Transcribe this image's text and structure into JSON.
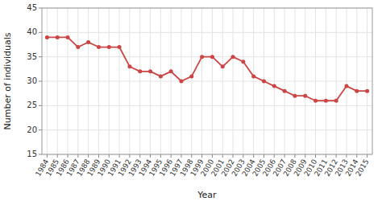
{
  "chart_data": {
    "type": "line",
    "x": [
      1984,
      1985,
      1986,
      1987,
      1988,
      1989,
      1990,
      1991,
      1992,
      1993,
      1994,
      1995,
      1996,
      1997,
      1998,
      1999,
      2000,
      2001,
      2002,
      2003,
      2004,
      2005,
      2006,
      2007,
      2008,
      2009,
      2010,
      2011,
      2012,
      2013,
      2014,
      2015
    ],
    "values": [
      39,
      39,
      39,
      37,
      38,
      37,
      37,
      37,
      33,
      32,
      32,
      31,
      32,
      30,
      31,
      35,
      35,
      33,
      35,
      34,
      31,
      30,
      29,
      28,
      27,
      27,
      26,
      26,
      26,
      29,
      28,
      28
    ],
    "xlabel": "Year",
    "ylabel": "Number of individuals",
    "xlim": [
      1983.5,
      2015.5
    ],
    "xticks": [
      1984,
      1985,
      1986,
      1987,
      1988,
      1989,
      1990,
      1991,
      1992,
      1993,
      1994,
      1995,
      1996,
      1997,
      1998,
      1999,
      2000,
      2001,
      2002,
      2003,
      2004,
      2005,
      2006,
      2007,
      2008,
      2009,
      2010,
      2011,
      2012,
      2013,
      2014,
      2015
    ],
    "ylim": [
      15,
      45
    ],
    "yticks": [
      15,
      20,
      25,
      30,
      35,
      40,
      45
    ],
    "color": "#cc4444",
    "marker": "circle",
    "grid": true
  }
}
